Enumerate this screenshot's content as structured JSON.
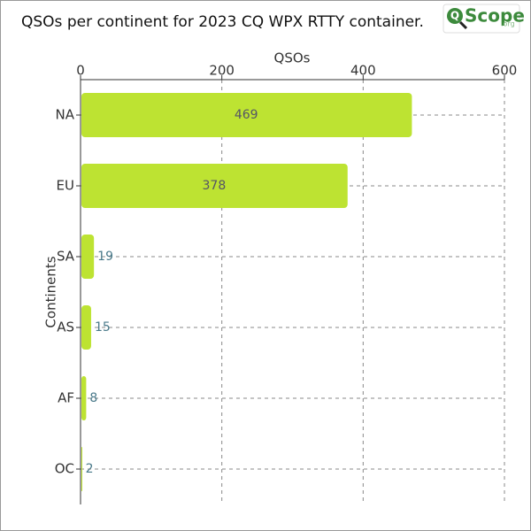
{
  "chart_data": {
    "type": "bar",
    "orientation": "horizontal",
    "title": "QSOs per continent for 2023 CQ WPX RTTY container.",
    "logo": {
      "mark": "Q",
      "name": "Scope",
      "suffix": ".org"
    },
    "x_label": "QSOs",
    "y_label": "Continents",
    "categories": [
      "NA",
      "EU",
      "SA",
      "AS",
      "AF",
      "OC"
    ],
    "values": [
      469,
      378,
      19,
      15,
      8,
      2
    ],
    "color": "#bde332",
    "xlim": [
      0,
      600
    ],
    "xticks": [
      0,
      200,
      400,
      600
    ],
    "grid": true
  }
}
